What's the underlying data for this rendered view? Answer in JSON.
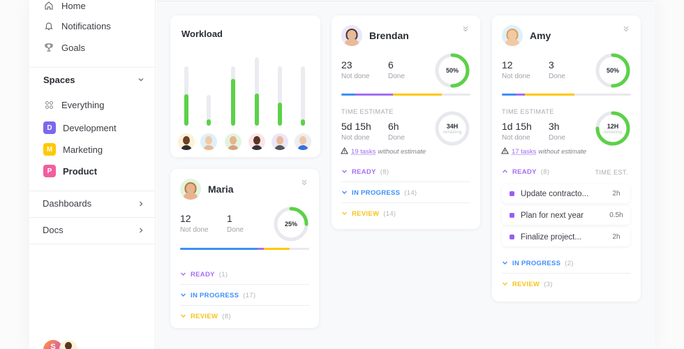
{
  "sidebar": {
    "nav": [
      {
        "label": "Home",
        "icon": "home-icon"
      },
      {
        "label": "Notifications",
        "icon": "bell-icon"
      },
      {
        "label": "Goals",
        "icon": "trophy-icon"
      }
    ],
    "spaces_title": "Spaces",
    "everything_label": "Everything",
    "spaces": [
      {
        "letter": "D",
        "label": "Development",
        "color": "#7b68ee"
      },
      {
        "letter": "M",
        "label": "Marketing",
        "color": "#ffc800"
      },
      {
        "letter": "P",
        "label": "Product",
        "color": "#f25ea0"
      }
    ],
    "dashboards_label": "Dashboards",
    "docs_label": "Docs",
    "footer_initial": "S"
  },
  "colors": {
    "green": "#5cd148",
    "blue": "#3e8ef7",
    "purple": "#a46ef2",
    "yellow": "#ffc800",
    "track": "#e8e9ee"
  },
  "workload": {
    "title": "Workload",
    "bars": [
      {
        "capacity": 0.87,
        "load": 0.53,
        "skin": "#6b4226",
        "bg": "#fdf1d6",
        "shirt": "#2c2c2c"
      },
      {
        "capacity": 0.45,
        "load": 0.21,
        "skin": "#f2c9a5",
        "bg": "#dff0fb",
        "shirt": "#e8b88f"
      },
      {
        "capacity": 0.87,
        "load": 0.78,
        "skin": "#e6b48f",
        "bg": "#e2f4df",
        "shirt": "#d9a07a"
      },
      {
        "capacity": 1.0,
        "load": 0.47,
        "skin": "#5a3621",
        "bg": "#fde3ea",
        "shirt": "#333333"
      },
      {
        "capacity": 0.87,
        "load": 0.39,
        "skin": "#e8b99a",
        "bg": "#ece6fa",
        "shirt": "#555555"
      },
      {
        "capacity": 0.87,
        "load": 0.11,
        "skin": "#f0c7a6",
        "bg": "#eceef1",
        "shirt": "#3a6fd8"
      }
    ]
  },
  "people": [
    {
      "name": "Maria",
      "avatar": {
        "skin": "#e6b48f",
        "bg": "#e2f4df",
        "hair": "#b57a45"
      },
      "not_done": "12",
      "not_done_label": "Not done",
      "done": "1",
      "done_label": "Done",
      "progress_label": "25%",
      "progress": 0.25,
      "segments": [
        0.6,
        0.05,
        0.2
      ],
      "groups": [
        {
          "label": "READY",
          "count": "(1)",
          "color": "#a46ef2",
          "chevron": "down"
        },
        {
          "label": "IN PROGRESS",
          "count": "(17)",
          "color": "#3e8ef7",
          "chevron": "down"
        },
        {
          "label": "REVIEW",
          "count": "(8)",
          "color": "#f5c518",
          "chevron": "down"
        }
      ]
    },
    {
      "name": "Brendan",
      "avatar": {
        "skin": "#e8b99a",
        "bg": "#ece6fa",
        "hair": "#4a3a30"
      },
      "not_done": "23",
      "not_done_label": "Not done",
      "done": "6",
      "done_label": "Done",
      "progress_label": "50%",
      "progress": 0.5,
      "segments": [
        0.11,
        0.29,
        0.38
      ],
      "time": {
        "section": "TIME ESTIMATE",
        "not_done": "5d 15h",
        "not_done_label": "Not done",
        "done": "6h",
        "done_label": "Done",
        "ring_label": "34H",
        "ring_sub": "remaining",
        "ring_progress": 0.0,
        "warn_link": "19 tasks",
        "warn_text": "without estimate"
      },
      "groups": [
        {
          "label": "READY",
          "count": "(8)",
          "color": "#a46ef2",
          "chevron": "down"
        },
        {
          "label": "IN PROGRESS",
          "count": "(14)",
          "color": "#3e8ef7",
          "chevron": "down"
        },
        {
          "label": "REVIEW",
          "count": "(14)",
          "color": "#f5c518",
          "chevron": "down"
        }
      ]
    },
    {
      "name": "Amy",
      "avatar": {
        "skin": "#f2c9a5",
        "bg": "#dff0fb",
        "hair": "#d9a35a"
      },
      "not_done": "12",
      "not_done_label": "Not done",
      "done": "3",
      "done_label": "Done",
      "progress_label": "50%",
      "progress": 0.5,
      "segments": [
        0.11,
        0.07,
        0.38
      ],
      "time": {
        "section": "TIME ESTIMATE",
        "not_done": "1d 15h",
        "not_done_label": "Not done",
        "done": "3h",
        "done_label": "Done",
        "ring_label": "12H",
        "ring_sub": "remaining",
        "ring_progress": 0.75,
        "warn_link": "17 tasks",
        "warn_text": "without estimate"
      },
      "ready": {
        "label": "READY",
        "count": "(8)",
        "color": "#a46ef2",
        "time_header": "TIME EST."
      },
      "tasks": [
        {
          "name": "Update contracto...",
          "est": "2h"
        },
        {
          "name": "Plan for next year",
          "est": "0.5h"
        },
        {
          "name": "Finalize project...",
          "est": "2h"
        }
      ],
      "groups": [
        {
          "label": "IN PROGRESS",
          "count": "(2)",
          "color": "#3e8ef7",
          "chevron": "down"
        },
        {
          "label": "REVIEW",
          "count": "(3)",
          "color": "#f5c518",
          "chevron": "down"
        }
      ]
    }
  ]
}
